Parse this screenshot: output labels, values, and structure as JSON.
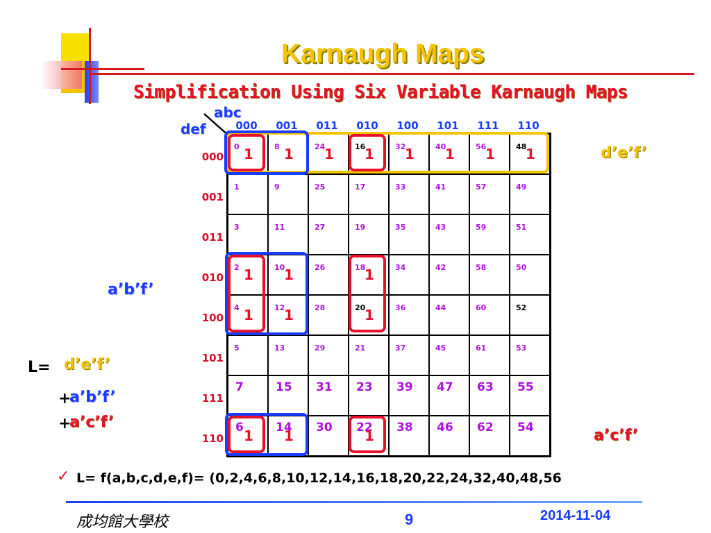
{
  "slide": {
    "title": "Karnaugh Maps",
    "subtitle": "Simplification Using Six Variable Karnaugh Maps",
    "page_number": "9",
    "date": "2014-11-04",
    "school": "成均館大學校"
  },
  "kmap": {
    "col_var_label": "abc",
    "row_var_label": "def",
    "col_headers": [
      "000",
      "001",
      "011",
      "010",
      "100",
      "101",
      "111",
      "110"
    ],
    "row_headers": [
      "000",
      "001",
      "011",
      "010",
      "100",
      "101",
      "111",
      "110"
    ],
    "cell_numbers": [
      [
        "0",
        "8",
        "24",
        "16",
        "32",
        "40",
        "56",
        "48"
      ],
      [
        "1",
        "9",
        "25",
        "17",
        "33",
        "41",
        "57",
        "49"
      ],
      [
        "3",
        "11",
        "27",
        "19",
        "35",
        "43",
        "59",
        "51"
      ],
      [
        "2",
        "10",
        "26",
        "18",
        "34",
        "42",
        "58",
        "50"
      ],
      [
        "4",
        "12",
        "28",
        "20",
        "36",
        "44",
        "60",
        "52"
      ],
      [
        "5",
        "13",
        "29",
        "21",
        "37",
        "45",
        "61",
        "53"
      ],
      [
        "7",
        "15",
        "31",
        "23",
        "39",
        "47",
        "63",
        "55"
      ],
      [
        "6",
        "14",
        "30",
        "22",
        "38",
        "46",
        "62",
        "54"
      ]
    ],
    "ones": [
      [
        0,
        0
      ],
      [
        0,
        1
      ],
      [
        0,
        2
      ],
      [
        0,
        3
      ],
      [
        0,
        4
      ],
      [
        0,
        5
      ],
      [
        0,
        6
      ],
      [
        0,
        7
      ],
      [
        3,
        0
      ],
      [
        3,
        1
      ],
      [
        3,
        3
      ],
      [
        4,
        0
      ],
      [
        4,
        1
      ],
      [
        4,
        3
      ],
      [
        7,
        0
      ],
      [
        7,
        1
      ],
      [
        7,
        3
      ]
    ],
    "one_value": "1",
    "colors": {
      "group_yellow": "#f5c400",
      "group_blue": "#1a3cff",
      "group_red": "#e8102a"
    }
  },
  "annotations": {
    "right_top": "d’e’f’",
    "left_mid": "a’b’f’",
    "right_bottom": "a’c’f’"
  },
  "result": {
    "L_label": "L=",
    "term1": "d’e’f’",
    "plus": "+",
    "term2": "a’b’f’",
    "term3": "a’c’f’"
  },
  "minterms_line": "L= f(a,b,c,d,e,f)= (0,2,4,6,8,10,12,14,16,18,20,22,24,32,40,48,56"
}
